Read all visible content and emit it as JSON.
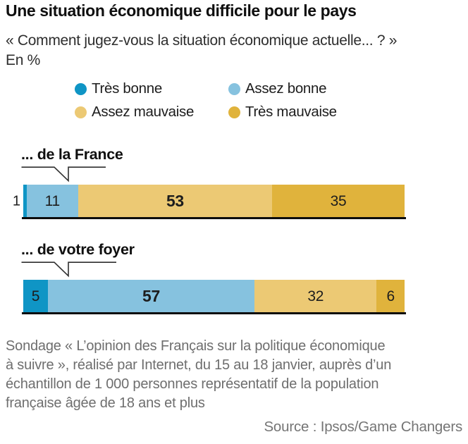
{
  "header": {
    "title": "Une situation économique difficile pour le pays",
    "question": "« Comment jugez-vous la situation économique actuelle... ? »",
    "unit": "En %"
  },
  "colors": {
    "tres_bonne": "#0f95c5",
    "assez_bonne": "#86c2df",
    "assez_mauvaise": "#ecc974",
    "tres_mauvaise": "#e0b33c",
    "baseline": "#0d0d0d",
    "footer_gray": "#6e6e6e"
  },
  "legend": {
    "items": [
      {
        "label": "Très bonne",
        "color": "#0f95c5"
      },
      {
        "label": "Assez bonne",
        "color": "#86c2df"
      },
      {
        "label": "Assez mauvaise",
        "color": "#ecc974"
      },
      {
        "label": "Très mauvaise",
        "color": "#e0b33c"
      }
    ]
  },
  "chart_data": {
    "type": "bar",
    "variant": "stacked-horizontal-100",
    "unit": "%",
    "xlim": [
      0,
      100
    ],
    "legend_position": "top",
    "categories": [
      "... de la France",
      "... de votre foyer"
    ],
    "series": [
      {
        "name": "Très bonne",
        "color": "#0f95c5",
        "values": [
          1,
          5
        ]
      },
      {
        "name": "Assez bonne",
        "color": "#86c2df",
        "values": [
          11,
          57
        ]
      },
      {
        "name": "Assez mauvaise",
        "color": "#ecc974",
        "values": [
          53,
          32
        ]
      },
      {
        "name": "Très mauvaise",
        "color": "#e0b33c",
        "values": [
          35,
          6
        ]
      }
    ],
    "notes": "largest value of each bar is printed bold; values too small to fit are printed left of the bar"
  },
  "footer": {
    "lines": [
      "Sondage « L’opinion des Français sur la politique économique",
      "à suivre », réalisé par Internet, du 15 au 18 janvier, auprès d’un",
      "échantillon de 1 000 personnes représentatif de la population",
      "française âgée de 18 ans et plus"
    ],
    "source": "Source : Ipsos/Game Changers"
  }
}
